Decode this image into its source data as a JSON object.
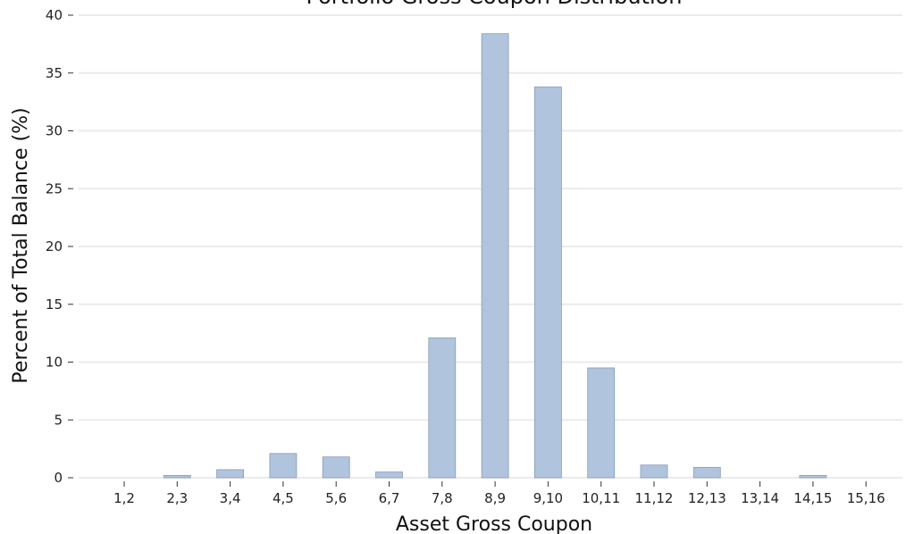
{
  "chart_data": {
    "type": "bar",
    "title": "Portfolio Gross Coupon Distribution",
    "xlabel": "Asset Gross Coupon",
    "ylabel": "Percent of Total Balance (%)",
    "categories": [
      "1,2",
      "2,3",
      "3,4",
      "4,5",
      "5,6",
      "6,7",
      "7,8",
      "8,9",
      "9,10",
      "10,11",
      "11,12",
      "12,13",
      "13,14",
      "14,15",
      "15,16"
    ],
    "values": [
      0,
      0.2,
      0.7,
      2.1,
      1.8,
      0.5,
      12.1,
      38.4,
      33.8,
      9.5,
      1.1,
      0.9,
      0,
      0.2,
      0
    ],
    "ylim": [
      0,
      40
    ],
    "yticks": [
      0,
      5,
      10,
      15,
      20,
      25,
      30,
      35,
      40
    ],
    "grid": true,
    "colors": {
      "bar": "#b0c4de",
      "bar_edge": "#8a9bb5",
      "grid": "#ebebeb"
    }
  }
}
